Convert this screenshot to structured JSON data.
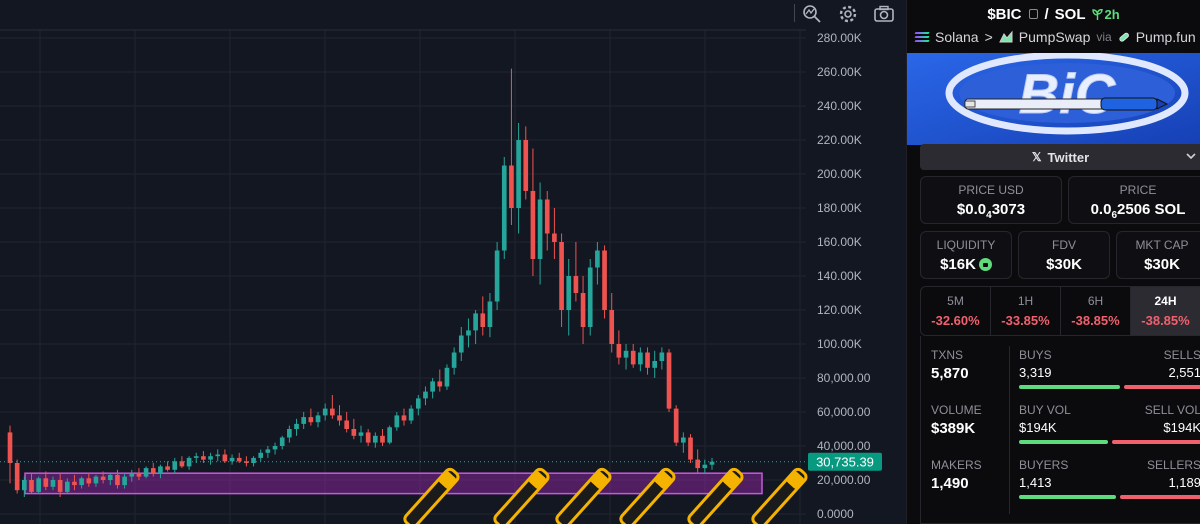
{
  "toolbar": {
    "icons": [
      "magnify-chart-icon",
      "gear-icon",
      "camera-icon"
    ]
  },
  "chart_data": {
    "type": "candlestick",
    "y_axis_labels": [
      "280.00K",
      "260.00K",
      "240.00K",
      "220.00K",
      "200.00K",
      "180.00K",
      "160.00K",
      "140.00K",
      "120.00K",
      "100.00K",
      "80,000.00",
      "60,000.00",
      "40,000.00",
      "20,000.00",
      "0.0000"
    ],
    "ylim": [
      0,
      280000
    ],
    "current_price_label": "30,735.39",
    "current_price": 30735.39,
    "grid": true,
    "colors": {
      "up": "#26a69a",
      "down": "#ef5350",
      "zone": "#9c27b0"
    },
    "support_zone": {
      "low": 12000,
      "high": 24000
    },
    "candles": [
      [
        48000,
        52000,
        18000,
        30000
      ],
      [
        30000,
        32000,
        12000,
        14000
      ],
      [
        14000,
        22000,
        10000,
        20000
      ],
      [
        20000,
        24000,
        12000,
        13000
      ],
      [
        13000,
        22000,
        12000,
        21000
      ],
      [
        21000,
        25000,
        14000,
        16000
      ],
      [
        16000,
        22000,
        14000,
        20000
      ],
      [
        20000,
        24000,
        10000,
        13000
      ],
      [
        13000,
        21000,
        12000,
        19000
      ],
      [
        19000,
        23000,
        14000,
        17000
      ],
      [
        17000,
        22000,
        15000,
        21000
      ],
      [
        21000,
        24000,
        16000,
        18000
      ],
      [
        18000,
        23000,
        16000,
        22000
      ],
      [
        22000,
        25000,
        18000,
        20000
      ],
      [
        20000,
        24000,
        17000,
        23000
      ],
      [
        23000,
        26000,
        15000,
        17000
      ],
      [
        17000,
        24000,
        15000,
        22000
      ],
      [
        22000,
        26000,
        19000,
        24000
      ],
      [
        24000,
        27000,
        20000,
        22000
      ],
      [
        22000,
        28000,
        21000,
        27000
      ],
      [
        27000,
        30000,
        22000,
        24000
      ],
      [
        24000,
        29000,
        21000,
        28000
      ],
      [
        28000,
        31000,
        25000,
        26000
      ],
      [
        26000,
        33000,
        24000,
        31000
      ],
      [
        31000,
        34000,
        27000,
        28000
      ],
      [
        28000,
        34000,
        26000,
        33000
      ],
      [
        33000,
        36000,
        30000,
        34000
      ],
      [
        34000,
        37000,
        30000,
        32000
      ],
      [
        32000,
        36000,
        29000,
        34000
      ],
      [
        34000,
        38000,
        31000,
        35000
      ],
      [
        35000,
        38000,
        30000,
        31000
      ],
      [
        31000,
        35000,
        29000,
        33000
      ],
      [
        33000,
        36000,
        30000,
        31000
      ],
      [
        31000,
        34000,
        28000,
        30000
      ],
      [
        30000,
        34000,
        28000,
        33000
      ],
      [
        33000,
        38000,
        31000,
        36000
      ],
      [
        36000,
        40000,
        33000,
        38000
      ],
      [
        38000,
        42000,
        35000,
        40000
      ],
      [
        40000,
        46000,
        38000,
        45000
      ],
      [
        45000,
        52000,
        42000,
        50000
      ],
      [
        50000,
        56000,
        46000,
        53000
      ],
      [
        53000,
        60000,
        50000,
        57000
      ],
      [
        57000,
        62000,
        52000,
        54000
      ],
      [
        54000,
        60000,
        51000,
        58000
      ],
      [
        58000,
        65000,
        55000,
        62000
      ],
      [
        62000,
        70000,
        56000,
        58000
      ],
      [
        58000,
        64000,
        52000,
        55000
      ],
      [
        55000,
        60000,
        48000,
        50000
      ],
      [
        50000,
        56000,
        44000,
        46000
      ],
      [
        46000,
        52000,
        42000,
        48000
      ],
      [
        48000,
        50000,
        40000,
        42000
      ],
      [
        42000,
        48000,
        39000,
        46000
      ],
      [
        46000,
        50000,
        40000,
        42000
      ],
      [
        42000,
        52000,
        41000,
        51000
      ],
      [
        51000,
        60000,
        49000,
        58000
      ],
      [
        58000,
        62000,
        52000,
        55000
      ],
      [
        55000,
        64000,
        53000,
        62000
      ],
      [
        62000,
        70000,
        58000,
        68000
      ],
      [
        68000,
        75000,
        64000,
        72000
      ],
      [
        72000,
        80000,
        68000,
        78000
      ],
      [
        78000,
        85000,
        72000,
        75000
      ],
      [
        75000,
        88000,
        73000,
        86000
      ],
      [
        86000,
        98000,
        82000,
        95000
      ],
      [
        95000,
        110000,
        90000,
        105000
      ],
      [
        105000,
        115000,
        98000,
        108000
      ],
      [
        108000,
        120000,
        100000,
        118000
      ],
      [
        118000,
        128000,
        105000,
        110000
      ],
      [
        110000,
        130000,
        104000,
        125000
      ],
      [
        125000,
        160000,
        120000,
        155000
      ],
      [
        155000,
        210000,
        150000,
        205000
      ],
      [
        205000,
        262000,
        170000,
        180000
      ],
      [
        180000,
        230000,
        165000,
        220000
      ],
      [
        220000,
        228000,
        185000,
        190000
      ],
      [
        190000,
        215000,
        140000,
        150000
      ],
      [
        150000,
        195000,
        135000,
        185000
      ],
      [
        185000,
        190000,
        155000,
        165000
      ],
      [
        165000,
        180000,
        150000,
        160000
      ],
      [
        160000,
        165000,
        110000,
        120000
      ],
      [
        120000,
        150000,
        105000,
        140000
      ],
      [
        140000,
        160000,
        125000,
        130000
      ],
      [
        130000,
        140000,
        100000,
        110000
      ],
      [
        110000,
        150000,
        105000,
        145000
      ],
      [
        145000,
        160000,
        135000,
        155000
      ],
      [
        155000,
        158000,
        115000,
        120000
      ],
      [
        120000,
        130000,
        95000,
        100000
      ],
      [
        100000,
        108000,
        88000,
        92000
      ],
      [
        92000,
        100000,
        85000,
        96000
      ],
      [
        96000,
        100000,
        86000,
        88000
      ],
      [
        88000,
        98000,
        84000,
        95000
      ],
      [
        95000,
        98000,
        82000,
        86000
      ],
      [
        86000,
        96000,
        80000,
        90000
      ],
      [
        90000,
        98000,
        85000,
        95000
      ],
      [
        95000,
        97000,
        60000,
        62000
      ],
      [
        62000,
        64000,
        40000,
        42000
      ],
      [
        42000,
        48000,
        36000,
        45000
      ],
      [
        45000,
        47000,
        30000,
        32000
      ],
      [
        32000,
        38000,
        24000,
        27000
      ],
      [
        27000,
        32000,
        24000,
        29000
      ],
      [
        29000,
        33000,
        26000,
        30735
      ]
    ]
  },
  "panel": {
    "pair": {
      "base": "$BIC",
      "sep": "/",
      "quote": "SOL",
      "age": "2h"
    },
    "route": {
      "chain": "Solana",
      "arrow": ">",
      "dex": "PumpSwap",
      "via": "via",
      "launchpad": "Pump.fun"
    },
    "banner_text": "BiC",
    "social": {
      "twitter": "Twitter"
    },
    "price_usd": {
      "label": "PRICE USD",
      "prefix": "$0.0",
      "sub": "4",
      "suffix": "3073"
    },
    "price_sol": {
      "label": "PRICE",
      "prefix": "0.0",
      "sub": "6",
      "suffix": "2506 SOL"
    },
    "liquidity": {
      "label": "LIQUIDITY",
      "value": "$16K"
    },
    "fdv": {
      "label": "FDV",
      "value": "$30K"
    },
    "mktcap": {
      "label": "MKT CAP",
      "value": "$30K"
    },
    "timeframes": [
      {
        "label": "5M",
        "change": "-32.60%"
      },
      {
        "label": "1H",
        "change": "-33.85%"
      },
      {
        "label": "6H",
        "change": "-38.85%"
      },
      {
        "label": "24H",
        "change": "-38.85%"
      }
    ],
    "txns": {
      "label": "TXNS",
      "value": "5,870",
      "buys_label": "BUYS",
      "buys": "3,319",
      "sells_label": "SELLS",
      "sells": "2,551",
      "buy_share": 0.565
    },
    "volume": {
      "label": "VOLUME",
      "value": "$389K",
      "buy_label": "BUY VOL",
      "buy": "$194K",
      "sell_label": "SELL VOL",
      "sell": "$194K",
      "buy_share": 0.5
    },
    "makers": {
      "label": "MAKERS",
      "value": "1,490",
      "buyers_label": "BUYERS",
      "buyers": "1,413",
      "sellers_label": "SELLERS",
      "sellers": "1,189",
      "buy_share": 0.543
    }
  }
}
